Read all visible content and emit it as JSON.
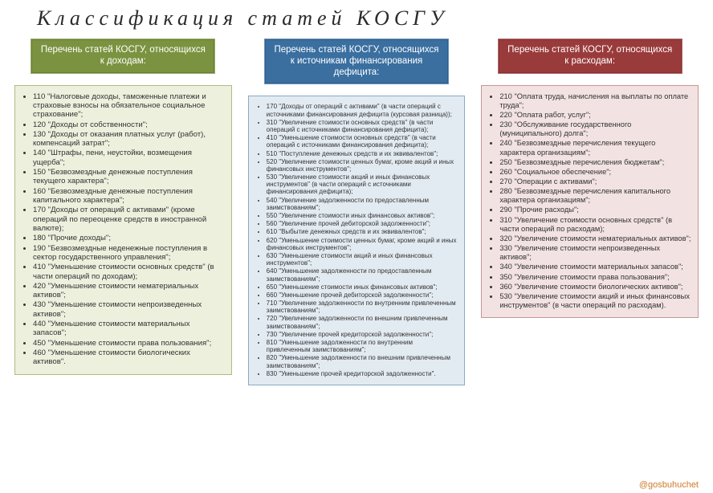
{
  "title": "Классификация статей КОСГУ",
  "footer": "@gosbuhuchet",
  "columns": {
    "green": {
      "header": "Перечень статей КОСГУ, относящихся к доходам:",
      "items": [
        "110 \"Налоговые доходы, таможенные платежи и страховые взносы на обязательное социальное страхование\";",
        "120 \"Доходы от собственности\";",
        "130 \"Доходы от оказания платных услуг (работ), компенсаций затрат\";",
        "140 \"Штрафы, пени, неустойки, возмещения ущерба\";",
        "150 \"Безвозмездные денежные поступления текущего характера\";",
        "160 \"Безвозмездные денежные поступления капитального характера\";",
        "170 \"Доходы от операций с активами\" (кроме операций по переоценке средств в иностранной валюте);",
        "180 \"Прочие доходы\";",
        "190 \"Безвозмездные неденежные поступления в сектор государственного управления\";",
        "410 \"Уменьшение стоимости основных средств\" (в части операций по доходам);",
        "420 \"Уменьшение стоимости нематериальных активов\";",
        "430 \"Уменьшение стоимости непроизведенных активов\";",
        "440 \"Уменьшение стоимости материальных запасов\";",
        "450 \"Уменьшение стоимости права пользования\";",
        "460 \"Уменьшение стоимости биологических активов\"."
      ]
    },
    "blue": {
      "header": "Перечень статей КОСГУ, относящихся к источникам финансирования дефицита:",
      "items": [
        "170 \"Доходы от операций с активами\" (в части операций с источниками финансирования дефицита (курсовая разница));",
        "310 \"Увеличение стоимости основных средств\" (в части операций с источниками финансирования дефицита);",
        "410 \"Уменьшение стоимости основных средств\" (в части операций с источниками финансирования дефицита);",
        "510 \"Поступление денежных средств и их эквивалентов\";",
        "520 \"Увеличение стоимости ценных бумаг, кроме акций и иных финансовых инструментов\";",
        "530 \"Увеличение стоимости акций и иных финансовых инструментов\" (в части операций с источниками финансирования дефицита);",
        "540 \"Увеличение задолженности по предоставленным заимствованиям\";",
        "550 \"Увеличение стоимости иных финансовых активов\";",
        "560 \"Увеличение прочей дебиторской задолженности\";",
        "610 \"Выбытие денежных средств и их эквивалентов\";",
        "620 \"Уменьшение стоимости ценных бумаг, кроме акций и иных финансовых инструментов\";",
        "630 \"Уменьшение стоимости акций и иных финансовых инструментов\";",
        "640 \"Уменьшение задолженности по предоставленным заимствованиям\";",
        "650 \"Уменьшение стоимости иных финансовых активов\";",
        "660 \"Уменьшение прочей дебиторской задолженности\";",
        "710 \"Увеличение задолженности по внутренним привлеченным заимствованиям\";",
        "720 \"Увеличение задолженности по внешним привлеченным заимствованиям\";",
        "730 \"Увеличение прочей кредиторской задолженности\";",
        "810 \"Уменьшение задолженности по внутренним привлеченным заимствованиям\";",
        "820 \"Уменьшение задолженности по внешним привлеченным заимствованиям\";",
        "830 \"Уменьшение прочей кредиторской задолженности\"."
      ]
    },
    "red": {
      "header": "Перечень статей КОСГУ, относящихся к расходам:",
      "items": [
        "210 \"Оплата труда, начисления на выплаты по оплате труда\";",
        "220 \"Оплата работ, услуг\";",
        "230 \"Обслуживание государственного (муниципального) долга\";",
        "240 \"Безвозмездные перечисления текущего характера организациям\";",
        "250 \"Безвозмездные перечисления бюджетам\";",
        "260 \"Социальное обеспечение\";",
        "270 \"Операции с активами\";",
        "280 \"Безвозмездные перечисления капитального характера организациям\";",
        "290 \"Прочие расходы\";",
        "310 \"Увеличение стоимости основных средств\" (в части операций по расходам);",
        "320 \"Увеличение стоимости нематериальных активов\";",
        "330 \"Увеличение стоимости непроизведенных активов\";",
        "340 \"Увеличение стоимости материальных запасов\";",
        "350 \"Увеличение стоимости права пользования\";",
        "360 \"Увеличение стоимости биологических активов\";",
        "530 \"Увеличение стоимости акций и иных финансовых инструментов\" (в части операций по расходам)."
      ]
    }
  }
}
